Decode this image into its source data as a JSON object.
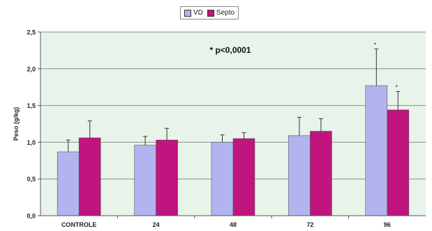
{
  "chart_data": {
    "type": "bar",
    "title": "",
    "annotation": "* p<0,0001",
    "ylabel": "Peso (g/kg)",
    "xlabel": "",
    "ylim": [
      0,
      2.5
    ],
    "yticks": [
      "0,0",
      "0,5",
      "1,0",
      "1,5",
      "2,0",
      "2,5"
    ],
    "ytick_values": [
      0,
      0.5,
      1.0,
      1.5,
      2.0,
      2.5
    ],
    "categories": [
      "CONTROLE",
      "24",
      "48",
      "72",
      "96"
    ],
    "series": [
      {
        "name": "VD",
        "color": "#b3b3f0",
        "values": [
          0.87,
          0.96,
          1.0,
          1.09,
          1.77
        ],
        "errors": [
          0.16,
          0.12,
          0.1,
          0.25,
          0.5
        ],
        "markers": [
          "",
          "",
          "",
          "",
          "*"
        ]
      },
      {
        "name": "Septo",
        "color": "#c0157f",
        "values": [
          1.06,
          1.03,
          1.05,
          1.15,
          1.44
        ],
        "errors": [
          0.23,
          0.16,
          0.08,
          0.17,
          0.25
        ],
        "markers": [
          "",
          "",
          "",
          "",
          "*"
        ]
      }
    ],
    "grid": true,
    "plot_background": "#e8f3ea",
    "legend_position": "top-center"
  }
}
